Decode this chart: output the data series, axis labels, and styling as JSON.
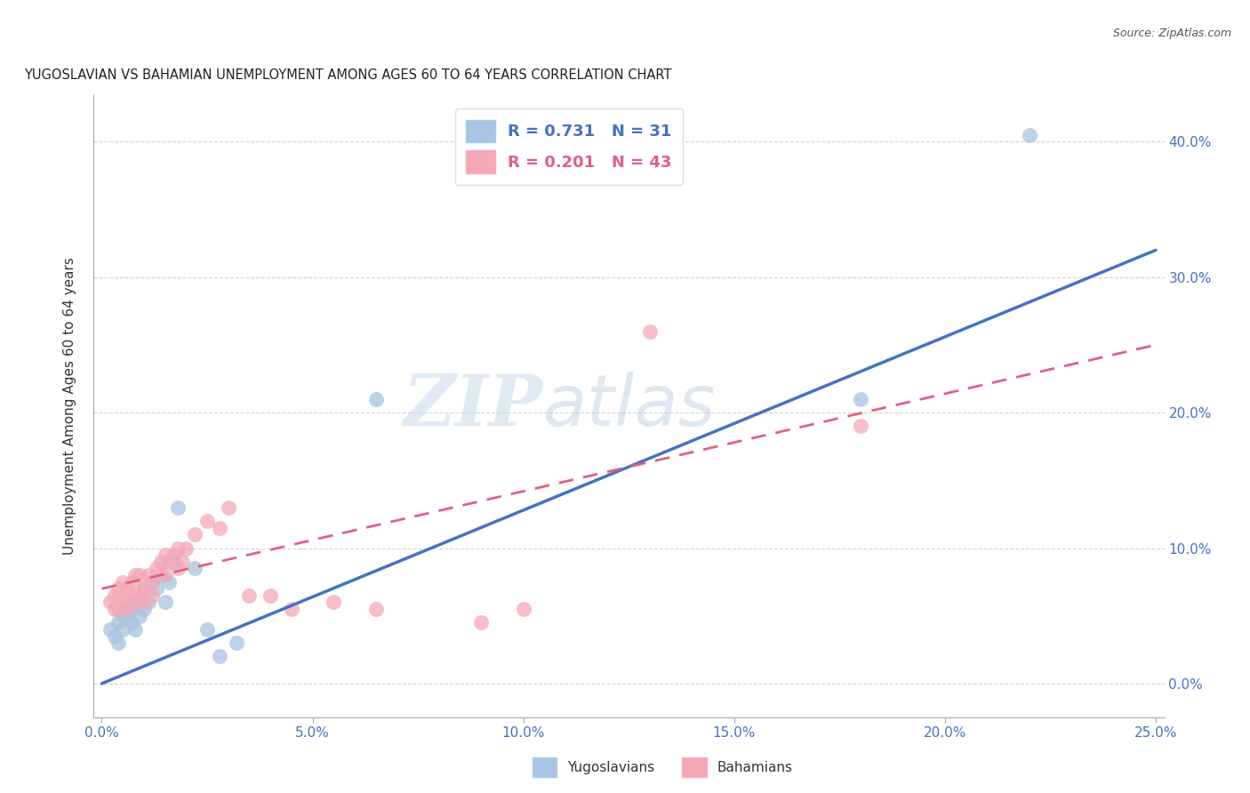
{
  "title": "YUGOSLAVIAN VS BAHAMIAN UNEMPLOYMENT AMONG AGES 60 TO 64 YEARS CORRELATION CHART",
  "source": "Source: ZipAtlas.com",
  "ylabel": "Unemployment Among Ages 60 to 64 years",
  "xlabel_ticks": [
    "0.0%",
    "5.0%",
    "10.0%",
    "15.0%",
    "20.0%",
    "25.0%"
  ],
  "ylabel_ticks": [
    "0.0%",
    "10.0%",
    "20.0%",
    "30.0%",
    "40.0%"
  ],
  "xlim": [
    -0.002,
    0.252
  ],
  "ylim": [
    -0.025,
    0.435
  ],
  "yug_color": "#a8c4e0",
  "bah_color": "#f4a8b8",
  "yug_line_color": "#4472c4",
  "bah_line_color": "#e06080",
  "watermark_zip": "ZIP",
  "watermark_atlas": "atlas",
  "legend_R_yug": "0.731",
  "legend_N_yug": "31",
  "legend_R_bah": "0.201",
  "legend_N_bah": "43",
  "yug_scatter_x": [
    0.002,
    0.003,
    0.004,
    0.004,
    0.005,
    0.005,
    0.006,
    0.006,
    0.007,
    0.007,
    0.008,
    0.008,
    0.009,
    0.009,
    0.01,
    0.01,
    0.011,
    0.012,
    0.013,
    0.014,
    0.015,
    0.016,
    0.017,
    0.018,
    0.022,
    0.025,
    0.028,
    0.032,
    0.065,
    0.18,
    0.22
  ],
  "yug_scatter_y": [
    0.04,
    0.035,
    0.045,
    0.03,
    0.04,
    0.05,
    0.05,
    0.06,
    0.055,
    0.045,
    0.06,
    0.04,
    0.065,
    0.05,
    0.07,
    0.055,
    0.06,
    0.075,
    0.07,
    0.08,
    0.06,
    0.075,
    0.09,
    0.13,
    0.085,
    0.04,
    0.02,
    0.03,
    0.21,
    0.21,
    0.405
  ],
  "bah_scatter_x": [
    0.002,
    0.003,
    0.003,
    0.004,
    0.004,
    0.005,
    0.005,
    0.006,
    0.006,
    0.007,
    0.007,
    0.008,
    0.008,
    0.009,
    0.009,
    0.01,
    0.01,
    0.011,
    0.012,
    0.012,
    0.013,
    0.014,
    0.015,
    0.015,
    0.016,
    0.017,
    0.018,
    0.018,
    0.019,
    0.02,
    0.022,
    0.025,
    0.028,
    0.03,
    0.035,
    0.04,
    0.045,
    0.055,
    0.065,
    0.09,
    0.1,
    0.13,
    0.18
  ],
  "bah_scatter_y": [
    0.06,
    0.065,
    0.055,
    0.07,
    0.055,
    0.075,
    0.06,
    0.07,
    0.055,
    0.075,
    0.065,
    0.08,
    0.06,
    0.08,
    0.065,
    0.07,
    0.06,
    0.08,
    0.075,
    0.065,
    0.085,
    0.09,
    0.095,
    0.08,
    0.09,
    0.095,
    0.1,
    0.085,
    0.09,
    0.1,
    0.11,
    0.12,
    0.115,
    0.13,
    0.065,
    0.065,
    0.055,
    0.06,
    0.055,
    0.045,
    0.055,
    0.26,
    0.19
  ],
  "yug_line_x0": 0.0,
  "yug_line_y0": 0.0,
  "yug_line_x1": 0.25,
  "yug_line_y1": 0.32,
  "bah_line_x0": 0.0,
  "bah_line_y0": 0.07,
  "bah_line_x1": 0.25,
  "bah_line_y1": 0.25
}
